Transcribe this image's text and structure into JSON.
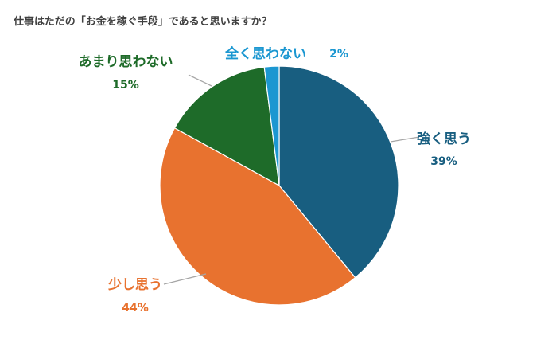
{
  "chart_data": {
    "type": "pie",
    "title": "仕事はただの「お金を稼ぐ手段」であると思いますか？",
    "unit": "%",
    "slices": [
      {
        "label": "強く思う",
        "value": 39,
        "color": "#185e80"
      },
      {
        "label": "少し思う",
        "value": 44,
        "color": "#e8722f"
      },
      {
        "label": "あまり思わない",
        "value": 15,
        "color": "#1e6b29"
      },
      {
        "label": "全く思わない",
        "value": 2,
        "color": "#1b97d1"
      }
    ],
    "legend": "none"
  }
}
